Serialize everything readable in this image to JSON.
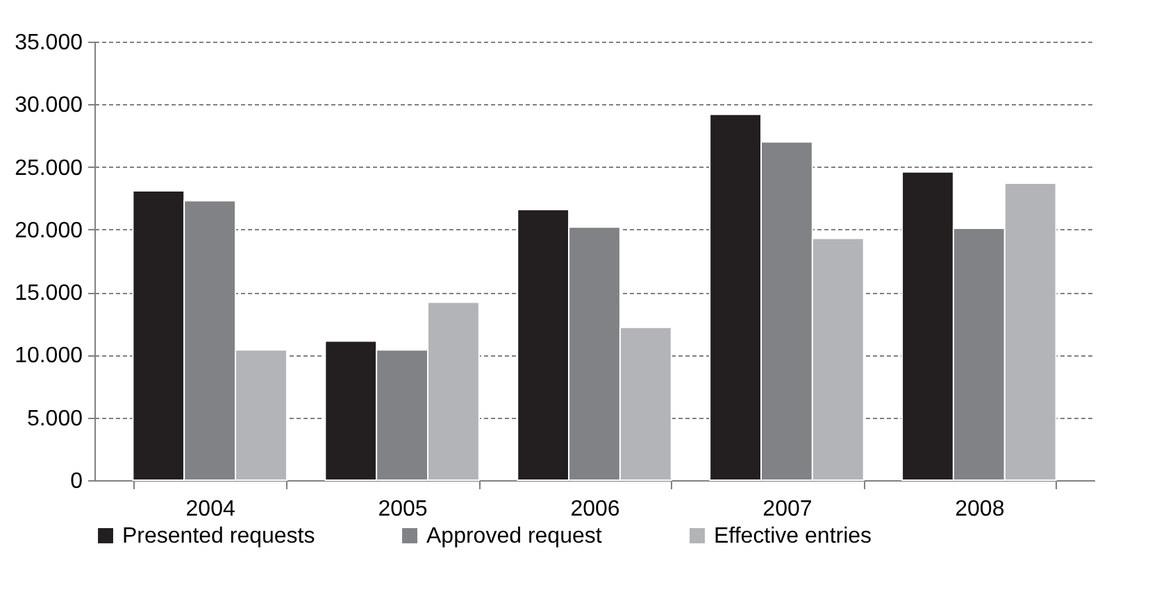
{
  "chart_data": {
    "type": "bar",
    "categories": [
      "2004",
      "2005",
      "2006",
      "2007",
      "2008"
    ],
    "series": [
      {
        "name": "Presented requests",
        "color": "#231f20",
        "values": [
          23100,
          11100,
          21600,
          29200,
          24600
        ]
      },
      {
        "name": "Approved request",
        "color": "#818285",
        "values": [
          22300,
          10400,
          20200,
          27000,
          20100
        ]
      },
      {
        "name": "Effective entries",
        "color": "#b3b4b7",
        "values": [
          10400,
          14200,
          12200,
          19300,
          23700
        ]
      }
    ],
    "ylim": [
      0,
      35000
    ],
    "yticks": [
      0,
      {
        "value": 5000,
        "label": "5.000"
      },
      {
        "value": 10000,
        "label": "10.000"
      },
      {
        "value": 15000,
        "label": "15.000"
      },
      {
        "value": 20000,
        "label": "20.000"
      },
      {
        "value": 25000,
        "label": "25.000"
      },
      {
        "value": 30000,
        "label": "30.000"
      },
      {
        "value": 35000,
        "label": "35.000"
      }
    ],
    "grid": "y",
    "legend": "bottom"
  }
}
